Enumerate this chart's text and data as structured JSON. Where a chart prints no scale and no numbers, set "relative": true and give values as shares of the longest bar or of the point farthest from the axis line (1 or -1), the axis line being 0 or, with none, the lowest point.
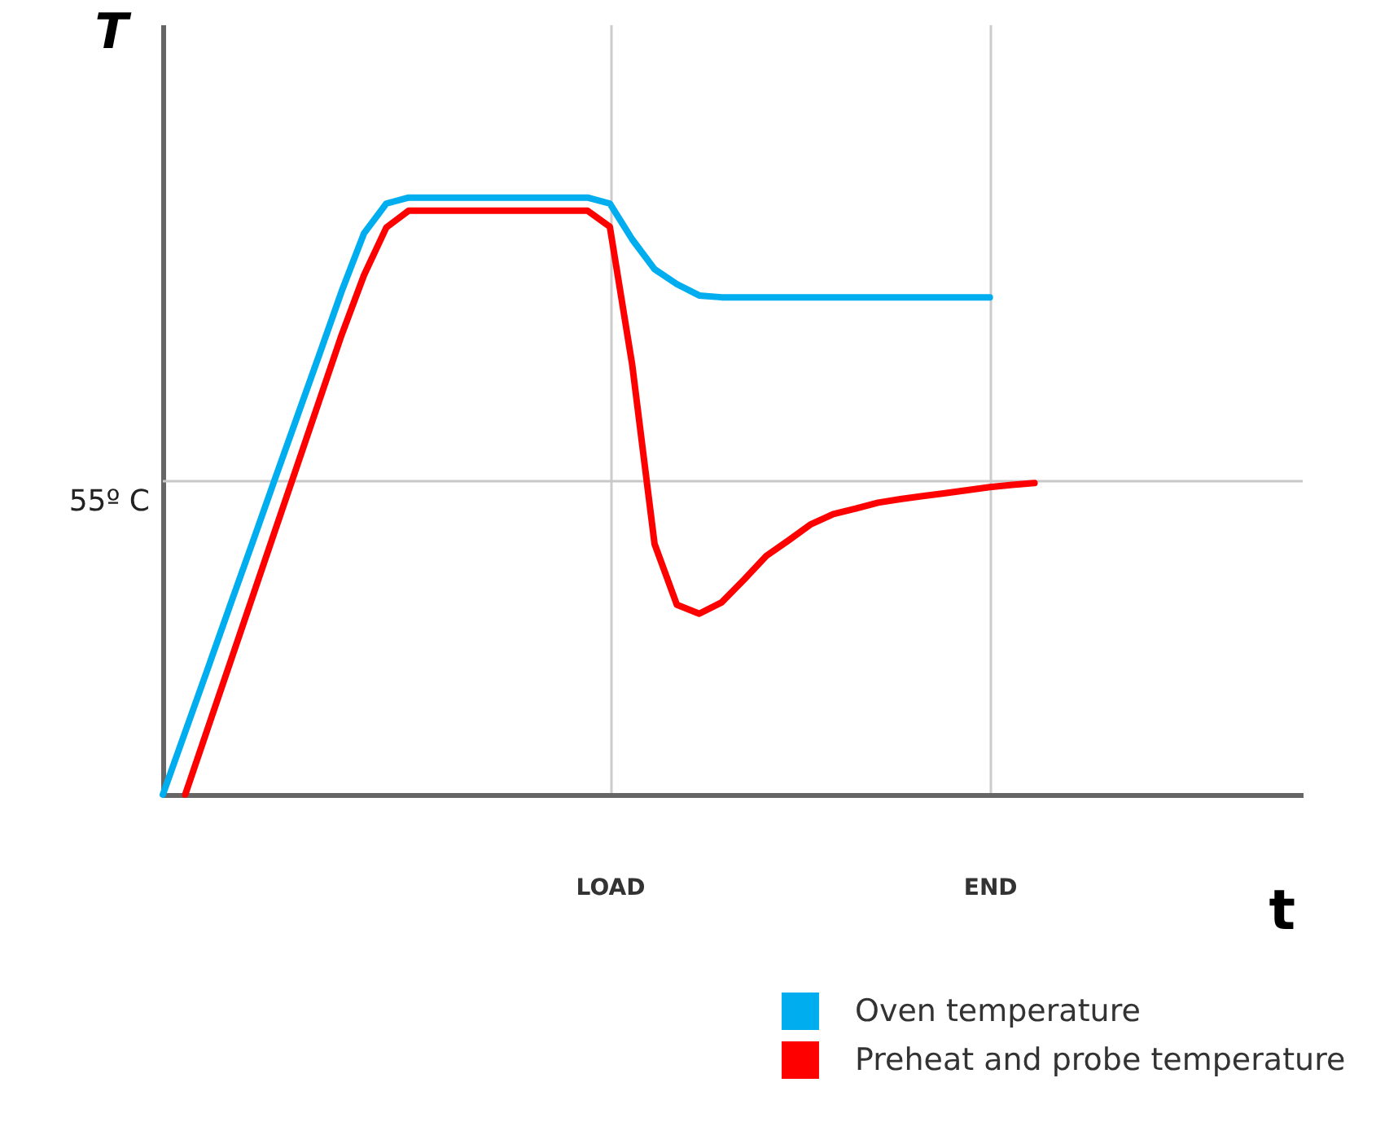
{
  "chart_data": {
    "type": "line",
    "xlabel": "t",
    "ylabel": "T",
    "relative": true,
    "categories": [
      null,
      null,
      null,
      null,
      null,
      null,
      null,
      null,
      null,
      null,
      null,
      null,
      null,
      null,
      null,
      null,
      null,
      null,
      null,
      null,
      "LOAD",
      null,
      null,
      null,
      null,
      null,
      null,
      null,
      null,
      null,
      null,
      null,
      null,
      null,
      null,
      null,
      null,
      "END",
      null,
      null,
      null,
      null,
      null,
      null,
      null,
      null,
      null,
      null,
      null,
      null,
      null,
      null
    ],
    "grid": "x",
    "legend": "bottom",
    "line_style": "solid",
    "marker": "none",
    "ref_lines": [
      {
        "axis": "y",
        "value": 0.525,
        "label": "55º C",
        "color": "#c8c8c8"
      }
    ],
    "series": [
      {
        "name": "Oven temperature",
        "color": "#00aeef",
        "values": [
          0,
          0.105,
          0.21,
          0.316,
          0.421,
          0.527,
          0.632,
          0.737,
          0.843,
          0.94,
          0.99,
          1,
          1,
          1,
          1,
          1,
          1,
          1,
          1,
          1,
          0.99,
          0.93,
          0.88,
          0.855,
          0.836,
          0.833,
          0.833,
          0.833,
          0.833,
          0.833,
          0.833,
          0.833,
          0.833,
          0.833,
          0.833,
          0.833,
          0.833,
          0.833,
          null,
          null,
          null,
          null,
          null,
          null,
          null,
          null,
          null,
          null,
          null,
          null,
          null,
          null
        ]
      },
      {
        "name": "Preheat and probe temperature",
        "color": "#ff0000",
        "values": [
          null,
          0,
          0.11,
          0.22,
          0.33,
          0.44,
          0.55,
          0.66,
          0.77,
          0.87,
          0.95,
          0.978,
          0.978,
          0.978,
          0.978,
          0.978,
          0.978,
          0.978,
          0.978,
          0.978,
          0.951,
          0.72,
          0.42,
          0.318,
          0.303,
          0.322,
          0.36,
          0.4,
          0.426,
          0.453,
          0.47,
          0.479,
          0.489,
          0.495,
          0.5,
          0.505,
          0.51,
          0.515,
          0.519,
          0.522,
          null,
          null,
          null,
          null,
          null,
          null,
          null,
          null,
          null,
          null,
          null,
          null
        ]
      }
    ]
  }
}
